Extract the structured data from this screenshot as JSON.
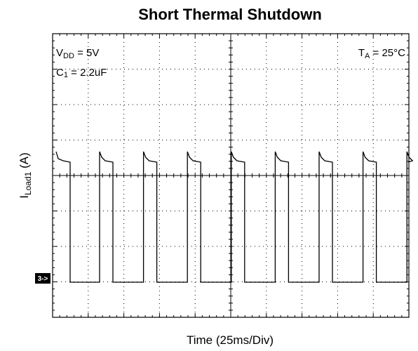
{
  "title": "Short Thermal Shutdown",
  "x_axis_label": "Time (25ms/Div)",
  "y_axis_label": {
    "symbol": "I",
    "subscript": "Load1",
    "text": " (A)"
  },
  "annotations": [
    {
      "symbol": "V",
      "subscript": "DD",
      "text": " = 5V"
    },
    {
      "symbol": "C",
      "subscript": "1",
      "text": " = 2.2uF"
    },
    {
      "symbol": "T",
      "subscript": "A",
      "text": " = 25°C"
    }
  ],
  "channel_marker": "3->"
}
